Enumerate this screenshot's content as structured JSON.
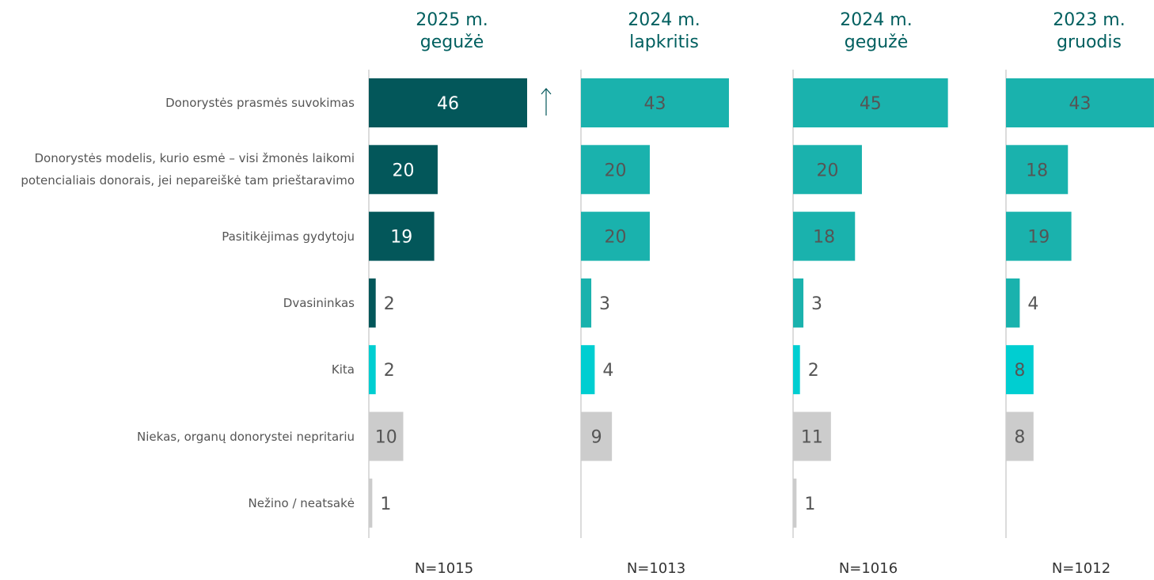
{
  "chart_data": {
    "type": "bar",
    "orientation": "horizontal",
    "categories": [
      "Donorystės prasmės suvokimas",
      "Donorystės modelis, kurio esmė – visi žmonės laikomi potencialiais donorais, jei nepareiškė tam prieštaravimo",
      "Pasitikėjimas gydytoju",
      "Dvasininkas",
      "Kita",
      "Niekas, organų donorystei nepritariu",
      "Nežino / neatsakė"
    ],
    "xlim": [
      0,
      46
    ],
    "series": [
      {
        "name": "2025 m. gegužė",
        "note": "N=1015",
        "values": [
          46,
          20,
          19,
          2,
          2,
          10,
          1
        ],
        "colors": [
          "#03575a",
          "#03575a",
          "#03575a",
          "#03575a",
          "#00ced1",
          "#cccccc",
          "#cccccc"
        ]
      },
      {
        "name": "2024 m. lapkritis",
        "note": "N=1013",
        "values": [
          43,
          20,
          20,
          3,
          4,
          9,
          null
        ],
        "colors": [
          "#1ab2ad",
          "#1ab2ad",
          "#1ab2ad",
          "#1ab2ad",
          "#00ced1",
          "#cccccc",
          "#cccccc"
        ]
      },
      {
        "name": "2024 m. gegužė",
        "note": "N=1016",
        "values": [
          45,
          20,
          18,
          3,
          2,
          11,
          1
        ],
        "colors": [
          "#1ab2ad",
          "#1ab2ad",
          "#1ab2ad",
          "#1ab2ad",
          "#00ced1",
          "#cccccc",
          "#cccccc"
        ]
      },
      {
        "name": "2023 m. gruodis",
        "note": "N=1012",
        "values": [
          43,
          18,
          19,
          4,
          8,
          8,
          null
        ],
        "colors": [
          "#1ab2ad",
          "#1ab2ad",
          "#1ab2ad",
          "#1ab2ad",
          "#00ced1",
          "#cccccc",
          "#cccccc"
        ]
      }
    ]
  }
}
